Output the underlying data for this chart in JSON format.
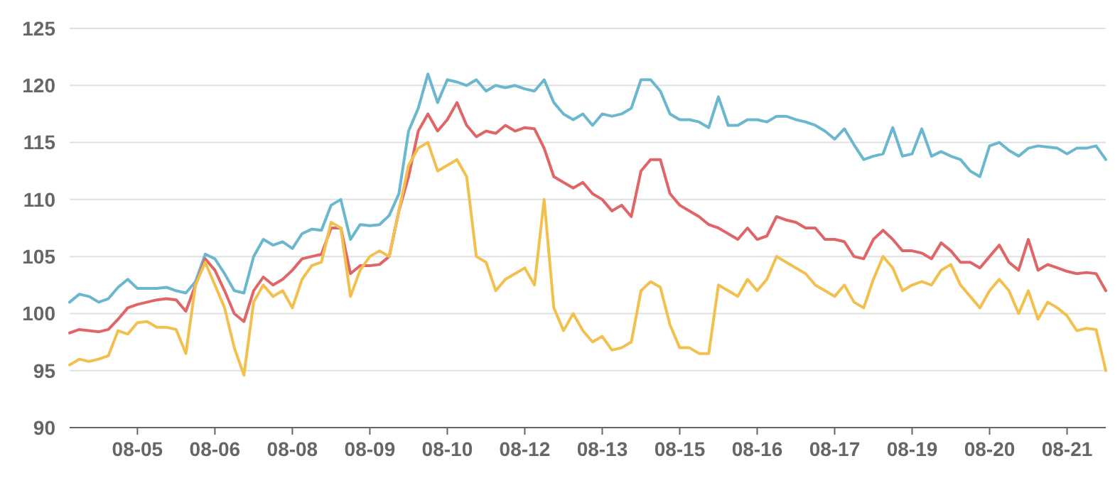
{
  "chart_data": {
    "type": "line",
    "categories": [
      null,
      null,
      null,
      null,
      null,
      null,
      null,
      "08-05",
      null,
      null,
      null,
      null,
      null,
      null,
      null,
      "08-06",
      null,
      null,
      null,
      null,
      null,
      null,
      null,
      "08-08",
      null,
      null,
      null,
      null,
      null,
      null,
      null,
      "08-09",
      null,
      null,
      null,
      null,
      null,
      null,
      null,
      "08-10",
      null,
      null,
      null,
      null,
      null,
      null,
      null,
      "08-12",
      null,
      null,
      null,
      null,
      null,
      null,
      null,
      "08-13",
      null,
      null,
      null,
      null,
      null,
      null,
      null,
      "08-15",
      null,
      null,
      null,
      null,
      null,
      null,
      null,
      "08-16",
      null,
      null,
      null,
      null,
      null,
      null,
      null,
      "08-17",
      null,
      null,
      null,
      null,
      null,
      null,
      null,
      "08-19",
      null,
      null,
      null,
      null,
      null,
      null,
      null,
      "08-20",
      null,
      null,
      null,
      null,
      null,
      null,
      null,
      "08-21",
      null,
      null,
      null,
      null
    ],
    "series": [
      {
        "color": "#6bb7cf",
        "values": [
          101,
          101.7,
          101.5,
          101,
          101.3,
          102.3,
          103,
          102.2,
          102.2,
          102.2,
          102.3,
          102,
          101.8,
          102.8,
          105.2,
          104.8,
          103.5,
          102,
          101.8,
          105,
          106.5,
          106,
          106.3,
          105.7,
          107,
          107.4,
          107.3,
          109.5,
          110,
          106.5,
          107.8,
          107.7,
          107.8,
          108.6,
          110.5,
          116,
          118,
          121,
          118.5,
          120.5,
          120.3,
          120,
          120.5,
          119.5,
          120,
          119.8,
          120,
          119.7,
          119.5,
          120.5,
          118.5,
          117.5,
          117,
          117.5,
          116.5,
          117.5,
          117.3,
          117.5,
          118,
          120.5,
          120.5,
          119.5,
          117.5,
          117,
          117,
          116.8,
          116.3,
          119,
          116.5,
          116.5,
          117,
          117,
          116.8,
          117.3,
          117.3,
          117,
          116.8,
          116.5,
          116,
          115.3,
          116.2,
          114.8,
          113.5,
          113.8,
          114,
          116.3,
          113.8,
          114,
          116.2,
          113.8,
          114.2,
          113.8,
          113.5,
          112.5,
          112,
          114.7,
          115,
          114.3,
          113.8,
          114.5,
          114.7,
          114.6,
          114.5,
          114,
          114.5,
          114.5,
          114.7,
          113.5
        ]
      },
      {
        "color": "#e06566",
        "values": [
          98.3,
          98.6,
          98.5,
          98.4,
          98.6,
          99.5,
          100.5,
          100.8,
          101,
          101.2,
          101.3,
          101.2,
          100.2,
          102.5,
          104.8,
          103.8,
          102,
          100,
          99.3,
          102,
          103.2,
          102.5,
          103,
          103.8,
          104.8,
          105,
          105.2,
          107.5,
          107.5,
          103.5,
          104.2,
          104.2,
          104.3,
          105,
          109,
          112,
          116,
          117.5,
          116,
          117,
          118.5,
          116.5,
          115.5,
          116,
          115.8,
          116.5,
          116,
          116.3,
          116.2,
          114.5,
          112,
          111.5,
          111,
          111.5,
          110.5,
          110,
          109,
          109.5,
          108.5,
          112.5,
          113.5,
          113.5,
          110.5,
          109.5,
          109,
          108.5,
          107.8,
          107.5,
          107,
          106.5,
          107.5,
          106.5,
          106.8,
          108.5,
          108.2,
          108,
          107.5,
          107.5,
          106.5,
          106.5,
          106.3,
          105,
          104.8,
          106.5,
          107.3,
          106.5,
          105.5,
          105.5,
          105.3,
          104.8,
          106.2,
          105.5,
          104.5,
          104.5,
          104,
          105,
          106,
          104.5,
          103.8,
          106.5,
          103.8,
          104.3,
          104,
          103.7,
          103.5,
          103.6,
          103.5,
          102
        ]
      },
      {
        "color": "#f2c04e",
        "values": [
          95.5,
          96,
          95.8,
          96,
          96.3,
          98.5,
          98.2,
          99.2,
          99.3,
          98.8,
          98.8,
          98.6,
          96.5,
          102.5,
          104.5,
          102.5,
          100.5,
          97,
          94.6,
          101,
          102.5,
          101.5,
          102,
          100.5,
          103,
          104.2,
          104.5,
          108,
          107.5,
          101.5,
          103.8,
          105,
          105.5,
          105,
          109,
          113,
          114.5,
          115,
          112.5,
          113,
          113.5,
          112,
          105,
          104.5,
          102,
          103,
          103.5,
          104,
          102.5,
          110,
          100.5,
          98.5,
          100,
          98.5,
          97.5,
          98,
          96.8,
          97,
          97.5,
          102,
          102.8,
          102.3,
          99,
          97,
          97,
          96.5,
          96.5,
          102.5,
          102,
          101.5,
          103,
          102,
          103,
          105,
          104.5,
          104,
          103.5,
          102.5,
          102,
          101.5,
          102.5,
          101,
          100.5,
          103,
          105,
          104,
          102,
          102.5,
          102.8,
          102.5,
          103.8,
          104.3,
          102.5,
          101.5,
          100.5,
          102,
          103,
          102,
          100,
          102,
          99.5,
          101,
          100.5,
          99.8,
          98.5,
          98.7,
          98.6,
          95
        ]
      }
    ],
    "ylim": [
      90,
      125
    ],
    "yticks": [
      90,
      95,
      100,
      105,
      110,
      115,
      120,
      125
    ],
    "grid": "y",
    "marker": "none",
    "line_style": "solid"
  }
}
